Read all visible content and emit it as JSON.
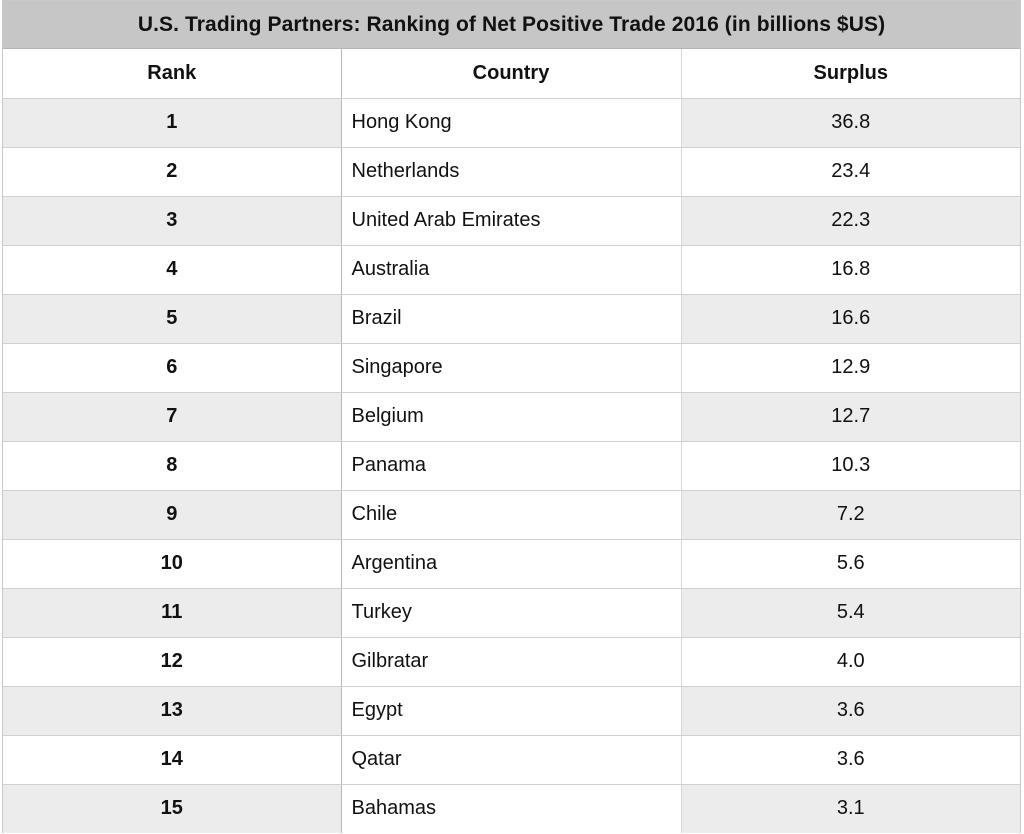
{
  "chart_data": {
    "type": "table",
    "title": "U.S. Trading Partners: Ranking of Net Positive Trade 2016 (in billions $US)",
    "columns": [
      "Rank",
      "Country",
      "Surplus"
    ],
    "rows": [
      {
        "rank": "1",
        "country": "Hong Kong",
        "surplus": "36.8"
      },
      {
        "rank": "2",
        "country": "Netherlands",
        "surplus": "23.4"
      },
      {
        "rank": "3",
        "country": "United Arab Emirates",
        "surplus": "22.3"
      },
      {
        "rank": "4",
        "country": "Australia",
        "surplus": "16.8"
      },
      {
        "rank": "5",
        "country": "Brazil",
        "surplus": "16.6"
      },
      {
        "rank": "6",
        "country": "Singapore",
        "surplus": "12.9"
      },
      {
        "rank": "7",
        "country": "Belgium",
        "surplus": "12.7"
      },
      {
        "rank": "8",
        "country": "Panama",
        "surplus": "10.3"
      },
      {
        "rank": "9",
        "country": "Chile",
        "surplus": "7.2"
      },
      {
        "rank": "10",
        "country": "Argentina",
        "surplus": "5.6"
      },
      {
        "rank": "11",
        "country": "Turkey",
        "surplus": "5.4"
      },
      {
        "rank": "12",
        "country": "Gilbratar",
        "surplus": "4.0"
      },
      {
        "rank": "13",
        "country": "Egypt",
        "surplus": "3.6"
      },
      {
        "rank": "14",
        "country": "Qatar",
        "surplus": "3.6"
      },
      {
        "rank": "15",
        "country": "Bahamas",
        "surplus": "3.1"
      }
    ]
  }
}
